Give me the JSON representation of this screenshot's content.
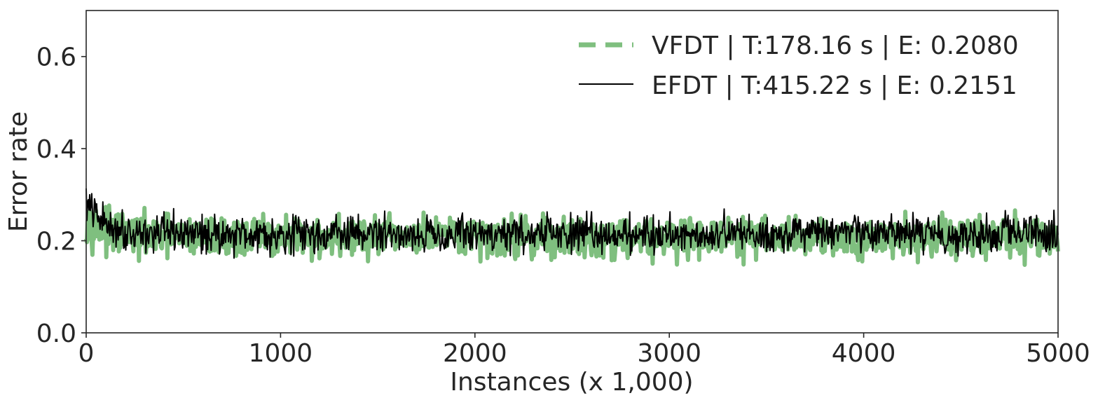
{
  "chart_data": {
    "type": "line",
    "title": "",
    "xlabel": "Instances (x 1,000)",
    "ylabel": "Error rate",
    "xlim": [
      0,
      5000
    ],
    "ylim": [
      0,
      0.7
    ],
    "xticks": [
      "0",
      "1000",
      "2000",
      "3000",
      "4000",
      "5000"
    ],
    "yticks": [
      "0.0",
      "0.2",
      "0.4",
      "0.6"
    ],
    "grid": false,
    "legend_position": "top-right",
    "series": [
      {
        "name": "VFDT | T:178.16 s | E: 0.2080",
        "color": "#7fbf7f",
        "style": "dashed",
        "mean": 0.208,
        "spread": 0.022,
        "start_value": 0.245
      },
      {
        "name": "EFDT | T:415.22 s | E: 0.2151",
        "color": "#000000",
        "style": "solid",
        "mean": 0.2151,
        "spread": 0.02,
        "start_value": 0.285
      }
    ]
  }
}
